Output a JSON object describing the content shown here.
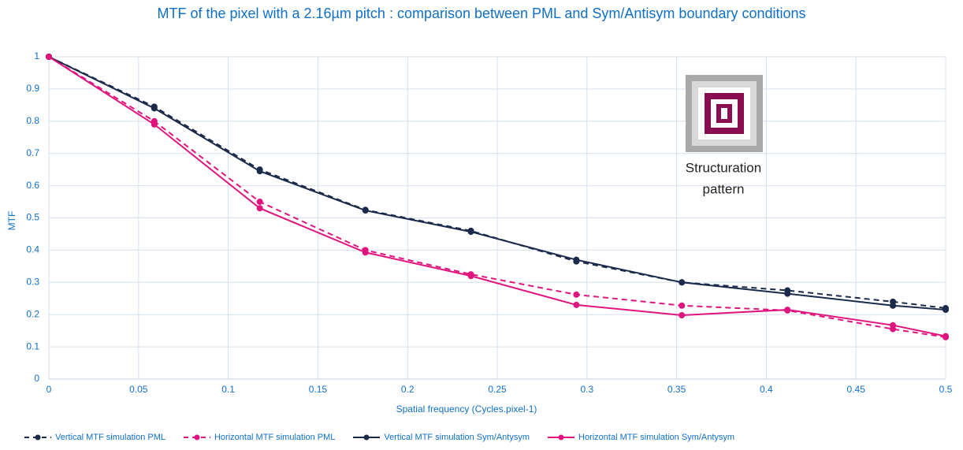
{
  "chart_data": {
    "type": "line",
    "title": "MTF of the pixel with a 2.16µm pitch : comparison between PML and Sym/Antisym boundary conditions",
    "x_label": "Spatial frequency (Cycles.pixel-1)",
    "y_label": "MTF",
    "annotation": [
      "Structuration",
      "pattern"
    ],
    "x": [
      0,
      0.0588,
      0.1176,
      0.1765,
      0.2353,
      0.2941,
      0.3529,
      0.4118,
      0.4706,
      0.5
    ],
    "series": [
      {
        "name": "Vertical MTF simulation PML",
        "color": "#1b2a4a",
        "dashed": true,
        "values": [
          1,
          0.845,
          0.65,
          0.525,
          0.46,
          0.365,
          0.3,
          0.275,
          0.24,
          0.22
        ]
      },
      {
        "name": "Horizontal MTF simulation PML",
        "color": "#e0147e",
        "dashed": true,
        "values": [
          1,
          0.8,
          0.55,
          0.4,
          0.325,
          0.262,
          0.228,
          0.213,
          0.155,
          0.13
        ]
      },
      {
        "name": "Vertical MTF simulation Sym/Antysym",
        "color": "#1b2a4a",
        "dashed": false,
        "values": [
          1,
          0.84,
          0.645,
          0.523,
          0.457,
          0.37,
          0.3,
          0.265,
          0.228,
          0.215
        ]
      },
      {
        "name": "Horizontal MTF simulation Sym/Antysym",
        "color": "#e0147e",
        "dashed": false,
        "values": [
          1,
          0.79,
          0.53,
          0.393,
          0.32,
          0.23,
          0.198,
          0.215,
          0.167,
          0.133
        ]
      }
    ],
    "xlim": [
      0,
      0.5
    ],
    "xticks": [
      0,
      0.05,
      0.1,
      0.15,
      0.2,
      0.25,
      0.3,
      0.35,
      0.4,
      0.45,
      0.5
    ],
    "ylim": [
      0,
      1
    ],
    "yticks": [
      0,
      0.1,
      0.2,
      0.3,
      0.4,
      0.5,
      0.6,
      0.7,
      0.8,
      0.9,
      1
    ],
    "grid": true,
    "legend": "bottom"
  }
}
